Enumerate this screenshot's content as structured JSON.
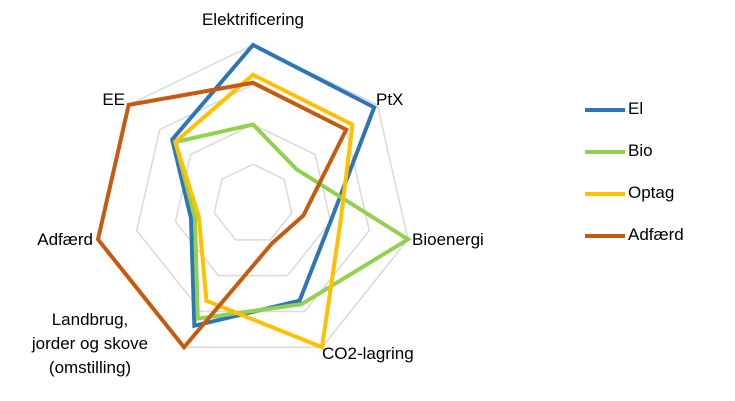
{
  "chart_data": {
    "type": "radar",
    "categories": [
      "Elektrificering",
      "PtX",
      "Bioenergi",
      "CO2-lagring",
      "Landbrug,\njorder og skove\n(omstilling)",
      "Adfærd",
      "EE"
    ],
    "ylim": [
      0,
      4
    ],
    "yticks": [
      0,
      1,
      2,
      3,
      4
    ],
    "grid": true,
    "legend": "right",
    "series": [
      {
        "name": "El",
        "color": "#2e75b6",
        "values": [
          4,
          3.9,
          2.0,
          2.7,
          3.4,
          1.6,
          2.6
        ]
      },
      {
        "name": "Bio",
        "color": "#92d050",
        "values": [
          2.0,
          1.4,
          4,
          2.8,
          3.2,
          1.5,
          2.5
        ]
      },
      {
        "name": "Optag",
        "color": "#ffc000",
        "values": [
          3.25,
          3.2,
          2.25,
          4,
          2.7,
          1.4,
          2.5
        ]
      },
      {
        "name": "Adfærd",
        "color": "#c55a11",
        "values": [
          3.05,
          3.0,
          1.3,
          1.1,
          4,
          4,
          4
        ]
      }
    ]
  }
}
